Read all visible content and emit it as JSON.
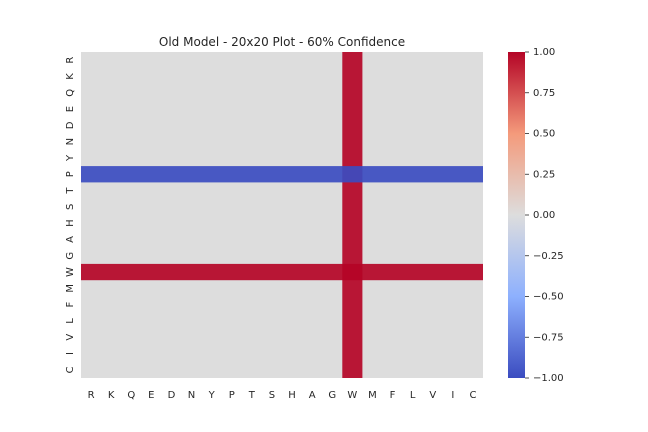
{
  "chart_data": {
    "type": "heatmap",
    "title": "Old Model - 20x20 Plot - 60% Confidence",
    "x_tick_labels": [
      "R",
      "K",
      "Q",
      "E",
      "D",
      "N",
      "Y",
      "P",
      "T",
      "S",
      "H",
      "A",
      "G",
      "W",
      "M",
      "F",
      "L",
      "V",
      "I",
      "C"
    ],
    "y_tick_labels": [
      "R",
      "K",
      "Q",
      "E",
      "D",
      "N",
      "Y",
      "P",
      "T",
      "S",
      "H",
      "A",
      "G",
      "W",
      "M",
      "F",
      "L",
      "V",
      "I",
      "C"
    ],
    "x_tick_shown": [
      "R",
      "K",
      "Q",
      "E",
      "D",
      "N",
      "Y",
      "P",
      "T",
      "S",
      "H",
      "A",
      "G",
      "W",
      "M",
      "F",
      "L",
      "V",
      "I",
      "C"
    ],
    "y_tick_shown": [
      "R",
      "K",
      "Q",
      "E",
      "D",
      "N",
      "Y",
      "P",
      "T",
      "S",
      "H",
      "A",
      "G",
      "W",
      "M",
      "F",
      "L",
      "V",
      "I",
      "C"
    ],
    "colorbar": {
      "colormap": "coolwarm",
      "vmin": -1.0,
      "vmax": 1.0,
      "ticks": [
        "1.00",
        "0.75",
        "0.50",
        "0.25",
        "0.00",
        "−0.25",
        "−0.50",
        "−0.75",
        "−1.00"
      ]
    },
    "colors": {
      "positive": "#b40426",
      "neutral": "#dddddd",
      "negative": "#3b4cc0"
    },
    "dominant_value": 0.0,
    "summary": [
      {
        "row": "W",
        "column": "all",
        "value": 1.0
      },
      {
        "row": "all",
        "column": "W",
        "value": 1.0
      },
      {
        "row": "P",
        "column": "all",
        "value": -1.0
      }
    ]
  }
}
